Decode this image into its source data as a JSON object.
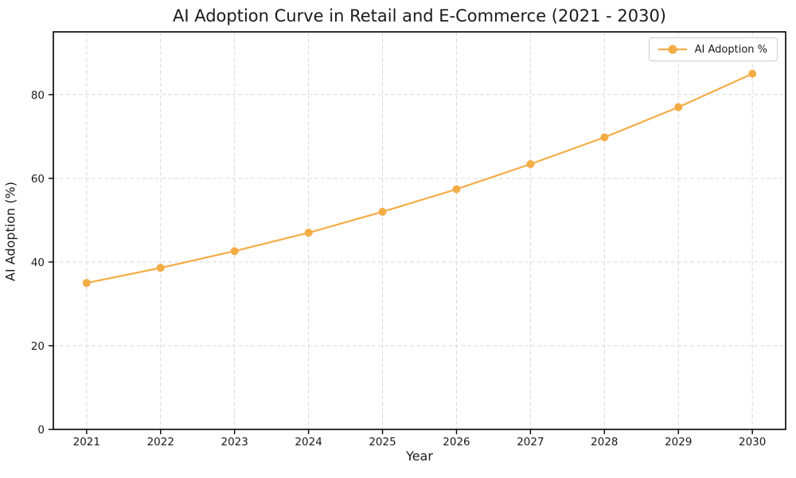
{
  "figure": {
    "background_color": "#ffffff",
    "text_color": "#1a1a1a",
    "spine_color": "#000000"
  },
  "chart_data": {
    "type": "line",
    "title": "AI Adoption Curve in Retail and E-Commerce (2021 - 2030)",
    "xlabel": "Year",
    "ylabel": "AI Adoption (%)",
    "x": [
      2021,
      2022,
      2023,
      2024,
      2025,
      2026,
      2027,
      2028,
      2029,
      2030
    ],
    "series": [
      {
        "name": "AI Adoption %",
        "values": [
          35.0,
          38.6,
          42.6,
          47.0,
          52.0,
          57.4,
          63.4,
          69.8,
          77.0,
          85.0
        ],
        "color": "#F4AC45",
        "marker": "circle",
        "line_width": 2.2,
        "marker_radius": 5
      }
    ],
    "xlim": [
      2020.55,
      2030.45
    ],
    "ylim": [
      0,
      95
    ],
    "xticks": [
      2021,
      2022,
      2023,
      2024,
      2025,
      2026,
      2027,
      2028,
      2029,
      2030
    ],
    "yticks": [
      0,
      20,
      40,
      60,
      80
    ],
    "grid": {
      "on": true,
      "style": "dashed",
      "color": "#d9d9d9"
    },
    "legend": {
      "position": "upper right",
      "entries": [
        "AI Adoption %"
      ]
    }
  }
}
